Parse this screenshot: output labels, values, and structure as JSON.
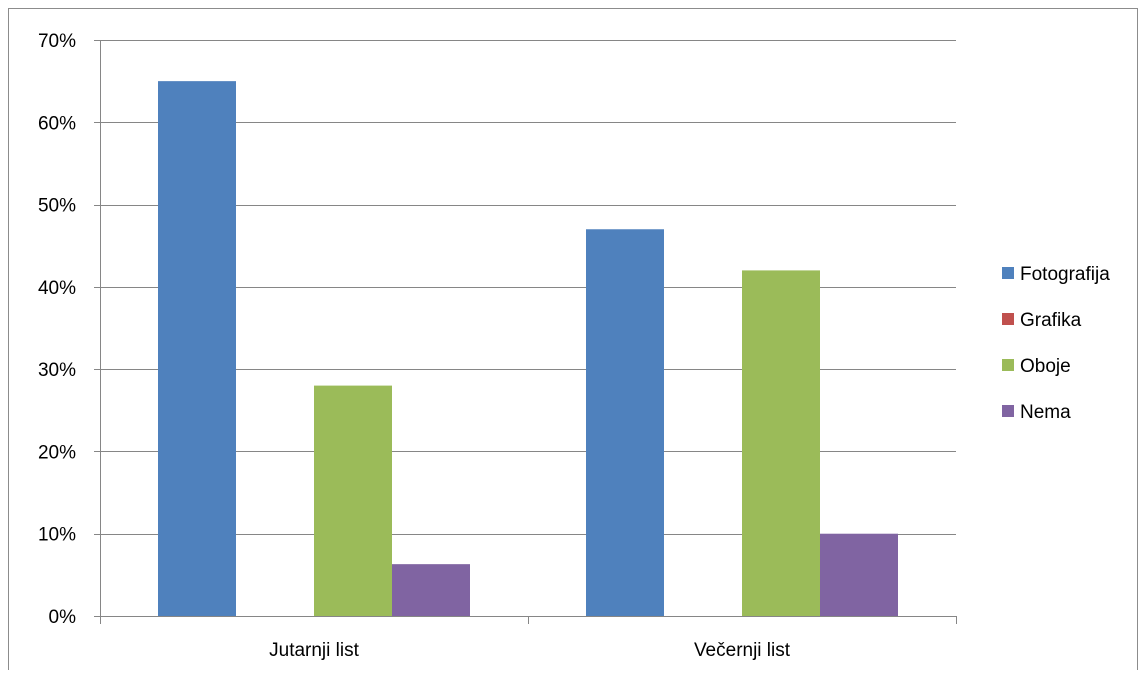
{
  "chart_data": {
    "type": "bar",
    "title": "",
    "xlabel": "",
    "ylabel": "",
    "categories": [
      "Jutarnji list",
      "Večernji list"
    ],
    "series": [
      {
        "name": "Fotografija",
        "color": "#4F81BD",
        "values": [
          65,
          47
        ]
      },
      {
        "name": "Grafika",
        "color": "#C0504D",
        "values": [
          0,
          0
        ]
      },
      {
        "name": "Oboje",
        "color": "#9BBB59",
        "values": [
          28,
          42
        ]
      },
      {
        "name": "Nema",
        "color": "#8064A2",
        "values": [
          6.3,
          10
        ]
      }
    ],
    "ylim": [
      0,
      70
    ],
    "yticks": [
      0,
      10,
      20,
      30,
      40,
      50,
      60,
      70
    ],
    "ytick_labels": [
      "0%",
      "10%",
      "20%",
      "30%",
      "40%",
      "50%",
      "60%",
      "70%"
    ],
    "grid": true,
    "legend_position": "right"
  }
}
